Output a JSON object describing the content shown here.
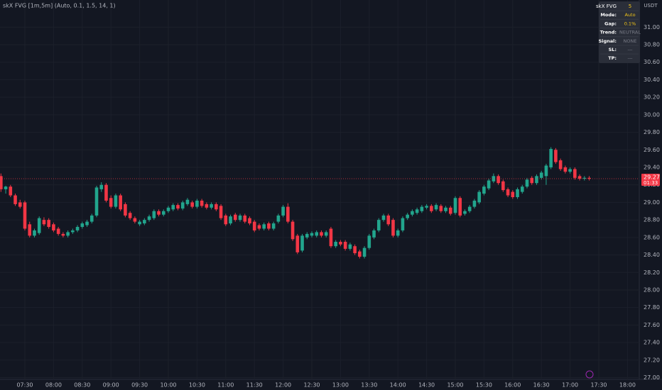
{
  "chart_data": {
    "type": "candlestick",
    "title": "skX FVG [1m,5m] (Auto, 0.1, 1.5, 14, 1)",
    "currency": "USDT",
    "up_color": "#22a58d",
    "down_color": "#f23645",
    "grid": true,
    "x": [
      "07:05",
      "07:10",
      "07:15",
      "07:20",
      "07:25",
      "07:30",
      "07:35",
      "07:40",
      "07:45",
      "07:50",
      "07:55",
      "08:00",
      "08:05",
      "08:10",
      "08:15",
      "08:20",
      "08:25",
      "08:30",
      "08:35",
      "08:40",
      "08:45",
      "08:50",
      "08:55",
      "09:00",
      "09:05",
      "09:10",
      "09:15",
      "09:20",
      "09:25",
      "09:30",
      "09:35",
      "09:40",
      "09:45",
      "09:50",
      "09:55",
      "10:00",
      "10:05",
      "10:10",
      "10:15",
      "10:20",
      "10:25",
      "10:30",
      "10:35",
      "10:40",
      "10:45",
      "10:50",
      "10:55",
      "11:00",
      "11:05",
      "11:10",
      "11:15",
      "11:20",
      "11:25",
      "11:30",
      "11:35",
      "11:40",
      "11:45",
      "11:50",
      "11:55",
      "12:00",
      "12:05",
      "12:10",
      "12:15",
      "12:20",
      "12:25",
      "12:30",
      "12:35",
      "12:40",
      "12:45",
      "12:50",
      "12:55",
      "13:00",
      "13:05",
      "13:10",
      "13:15",
      "13:20",
      "13:25",
      "13:30",
      "13:35",
      "13:40",
      "13:45",
      "13:50",
      "13:55",
      "14:00",
      "14:05",
      "14:10",
      "14:15",
      "14:20",
      "14:25",
      "14:30",
      "14:35",
      "14:40",
      "14:45",
      "14:50",
      "14:55",
      "15:00",
      "15:05",
      "15:10",
      "15:15",
      "15:20",
      "15:25",
      "15:30",
      "15:35",
      "15:40",
      "15:45",
      "15:50",
      "15:55",
      "16:00",
      "16:05",
      "16:10",
      "16:15",
      "16:20",
      "16:25",
      "16:30",
      "16:35",
      "16:40",
      "16:45",
      "16:50",
      "16:55",
      "17:00",
      "17:05",
      "17:10",
      "17:15",
      "17:20"
    ],
    "ohlc": [
      [
        29.3,
        29.33,
        29.12,
        29.15
      ],
      [
        29.15,
        29.19,
        29.1,
        29.18
      ],
      [
        29.18,
        29.2,
        29.06,
        29.08
      ],
      [
        29.08,
        29.1,
        28.96,
        28.98
      ],
      [
        29.0,
        29.03,
        28.93,
        28.95
      ],
      [
        29.0,
        29.02,
        28.68,
        28.7
      ],
      [
        28.75,
        28.78,
        28.6,
        28.62
      ],
      [
        28.62,
        28.7,
        28.6,
        28.68
      ],
      [
        28.65,
        28.84,
        28.63,
        28.82
      ],
      [
        28.8,
        28.83,
        28.73,
        28.75
      ],
      [
        28.8,
        28.82,
        28.7,
        28.72
      ],
      [
        28.75,
        28.77,
        28.66,
        28.68
      ],
      [
        28.7,
        28.72,
        28.62,
        28.64
      ],
      [
        28.64,
        28.66,
        28.6,
        28.62
      ],
      [
        28.62,
        28.68,
        28.6,
        28.66
      ],
      [
        28.66,
        28.7,
        28.64,
        28.68
      ],
      [
        28.68,
        28.74,
        28.66,
        28.72
      ],
      [
        28.72,
        28.78,
        28.7,
        28.76
      ],
      [
        28.74,
        28.8,
        28.72,
        28.78
      ],
      [
        28.78,
        28.87,
        28.76,
        28.85
      ],
      [
        28.85,
        29.19,
        28.83,
        29.17
      ],
      [
        29.15,
        29.23,
        29.12,
        29.2
      ],
      [
        29.2,
        29.22,
        29.0,
        29.02
      ],
      [
        29.05,
        29.08,
        28.93,
        28.95
      ],
      [
        28.95,
        29.1,
        28.93,
        29.08
      ],
      [
        29.08,
        29.1,
        28.9,
        28.92
      ],
      [
        28.98,
        29.0,
        28.83,
        28.85
      ],
      [
        28.88,
        28.9,
        28.8,
        28.82
      ],
      [
        28.82,
        28.84,
        28.76,
        28.78
      ],
      [
        28.75,
        28.8,
        28.73,
        28.78
      ],
      [
        28.76,
        28.82,
        28.74,
        28.8
      ],
      [
        28.8,
        28.86,
        28.78,
        28.84
      ],
      [
        28.82,
        28.92,
        28.8,
        28.9
      ],
      [
        28.9,
        28.92,
        28.84,
        28.86
      ],
      [
        28.86,
        28.92,
        28.84,
        28.9
      ],
      [
        28.9,
        28.96,
        28.88,
        28.94
      ],
      [
        28.92,
        28.99,
        28.9,
        28.97
      ],
      [
        28.97,
        28.99,
        28.91,
        28.93
      ],
      [
        28.93,
        29.02,
        28.91,
        29.0
      ],
      [
        28.98,
        29.05,
        28.96,
        29.03
      ],
      [
        29.0,
        29.02,
        28.93,
        28.95
      ],
      [
        28.95,
        29.04,
        28.93,
        29.02
      ],
      [
        29.02,
        29.04,
        28.94,
        28.96
      ],
      [
        28.98,
        29.0,
        28.92,
        28.94
      ],
      [
        28.94,
        29.0,
        28.92,
        28.98
      ],
      [
        28.98,
        29.0,
        28.9,
        28.92
      ],
      [
        28.96,
        28.98,
        28.8,
        28.82
      ],
      [
        28.85,
        28.87,
        28.73,
        28.75
      ],
      [
        28.76,
        28.86,
        28.74,
        28.84
      ],
      [
        28.86,
        28.88,
        28.78,
        28.8
      ],
      [
        28.8,
        28.87,
        28.78,
        28.85
      ],
      [
        28.85,
        28.87,
        28.76,
        28.78
      ],
      [
        28.82,
        28.84,
        28.74,
        28.76
      ],
      [
        28.78,
        28.8,
        28.66,
        28.68
      ],
      [
        28.74,
        28.76,
        28.68,
        28.7
      ],
      [
        28.7,
        28.77,
        28.68,
        28.75
      ],
      [
        28.76,
        28.78,
        28.68,
        28.7
      ],
      [
        28.7,
        28.78,
        28.68,
        28.76
      ],
      [
        28.78,
        28.87,
        28.76,
        28.85
      ],
      [
        28.85,
        28.97,
        28.83,
        28.95
      ],
      [
        28.95,
        28.99,
        28.76,
        28.78
      ],
      [
        28.78,
        28.8,
        28.56,
        28.58
      ],
      [
        28.62,
        28.64,
        28.41,
        28.43
      ],
      [
        28.45,
        28.64,
        28.43,
        28.62
      ],
      [
        28.6,
        28.66,
        28.58,
        28.64
      ],
      [
        28.62,
        28.67,
        28.6,
        28.65
      ],
      [
        28.62,
        28.68,
        28.6,
        28.66
      ],
      [
        28.66,
        28.68,
        28.6,
        28.62
      ],
      [
        28.62,
        28.68,
        28.6,
        28.66
      ],
      [
        28.7,
        28.72,
        28.48,
        28.5
      ],
      [
        28.5,
        28.57,
        28.48,
        28.55
      ],
      [
        28.55,
        28.57,
        28.5,
        28.52
      ],
      [
        28.55,
        28.57,
        28.45,
        28.47
      ],
      [
        28.47,
        28.54,
        28.45,
        28.52
      ],
      [
        28.5,
        28.52,
        28.4,
        28.42
      ],
      [
        28.44,
        28.46,
        28.36,
        28.38
      ],
      [
        28.38,
        28.5,
        28.36,
        28.48
      ],
      [
        28.48,
        28.64,
        28.46,
        28.62
      ],
      [
        28.6,
        28.7,
        28.58,
        28.68
      ],
      [
        28.68,
        28.82,
        28.66,
        28.8
      ],
      [
        28.8,
        28.87,
        28.78,
        28.85
      ],
      [
        28.85,
        28.87,
        28.73,
        28.75
      ],
      [
        28.8,
        28.82,
        28.6,
        28.62
      ],
      [
        28.62,
        28.7,
        28.6,
        28.68
      ],
      [
        28.68,
        28.84,
        28.66,
        28.82
      ],
      [
        28.82,
        28.88,
        28.8,
        28.86
      ],
      [
        28.86,
        28.92,
        28.84,
        28.9
      ],
      [
        28.88,
        28.94,
        28.86,
        28.92
      ],
      [
        28.9,
        28.97,
        28.88,
        28.95
      ],
      [
        28.94,
        28.98,
        28.92,
        28.96
      ],
      [
        28.96,
        28.98,
        28.88,
        28.9
      ],
      [
        28.92,
        28.99,
        28.9,
        28.97
      ],
      [
        28.96,
        28.98,
        28.88,
        28.9
      ],
      [
        28.9,
        28.96,
        28.88,
        28.94
      ],
      [
        28.94,
        28.96,
        28.85,
        28.87
      ],
      [
        28.88,
        29.07,
        28.86,
        29.05
      ],
      [
        29.05,
        29.07,
        28.83,
        28.85
      ],
      [
        28.87,
        28.92,
        28.85,
        28.9
      ],
      [
        28.9,
        28.97,
        28.88,
        28.95
      ],
      [
        28.95,
        29.04,
        28.93,
        29.02
      ],
      [
        29.0,
        29.14,
        28.98,
        29.12
      ],
      [
        29.1,
        29.2,
        29.08,
        29.18
      ],
      [
        29.16,
        29.27,
        29.14,
        29.25
      ],
      [
        29.24,
        29.33,
        29.22,
        29.3
      ],
      [
        29.3,
        29.32,
        29.2,
        29.22
      ],
      [
        29.24,
        29.26,
        29.12,
        29.14
      ],
      [
        29.15,
        29.17,
        29.06,
        29.08
      ],
      [
        29.12,
        29.14,
        29.04,
        29.06
      ],
      [
        29.06,
        29.17,
        29.04,
        29.15
      ],
      [
        29.12,
        29.2,
        29.1,
        29.18
      ],
      [
        29.18,
        29.28,
        29.16,
        29.26
      ],
      [
        29.28,
        29.3,
        29.2,
        29.22
      ],
      [
        29.22,
        29.32,
        29.2,
        29.3
      ],
      [
        29.28,
        29.36,
        29.26,
        29.34
      ],
      [
        29.3,
        29.44,
        29.2,
        29.42
      ],
      [
        29.4,
        29.63,
        29.38,
        29.61
      ],
      [
        29.6,
        29.62,
        29.44,
        29.46
      ],
      [
        29.48,
        29.5,
        29.36,
        29.38
      ],
      [
        29.4,
        29.42,
        29.33,
        29.35
      ],
      [
        29.35,
        29.4,
        29.33,
        29.38
      ],
      [
        29.38,
        29.4,
        29.26,
        29.28
      ],
      [
        29.3,
        29.32,
        29.25,
        29.27
      ],
      [
        29.27,
        29.3,
        29.25,
        29.28
      ],
      [
        29.28,
        29.3,
        29.25,
        29.27
      ]
    ],
    "xticks": [
      "07:30",
      "08:00",
      "08:30",
      "09:00",
      "09:30",
      "10:00",
      "10:30",
      "11:00",
      "11:30",
      "12:00",
      "12:30",
      "13:00",
      "13:30",
      "14:00",
      "14:30",
      "15:00",
      "15:30",
      "16:00",
      "16:30",
      "17:00",
      "17:30",
      "18:00"
    ],
    "ylim": [
      26.98,
      31.31
    ],
    "yticks": [
      {
        "value": 27.0,
        "label": "27.00"
      },
      {
        "value": 27.2,
        "label": "27.20"
      },
      {
        "value": 27.4,
        "label": "27.40"
      },
      {
        "value": 27.6,
        "label": "27.60"
      },
      {
        "value": 27.8,
        "label": "27.80"
      },
      {
        "value": 28.0,
        "label": "28.00"
      },
      {
        "value": 28.2,
        "label": "28.20"
      },
      {
        "value": 28.4,
        "label": "28.40"
      },
      {
        "value": 28.6,
        "label": "28.60"
      },
      {
        "value": 28.8,
        "label": "28.80"
      },
      {
        "value": 29.0,
        "label": "29.00"
      },
      {
        "value": 29.2,
        "label": "29.20"
      },
      {
        "value": 29.4,
        "label": "29.40"
      },
      {
        "value": 29.6,
        "label": "29.60"
      },
      {
        "value": 29.8,
        "label": "29.80"
      },
      {
        "value": 30.0,
        "label": "30.00"
      },
      {
        "value": 30.2,
        "label": "30.20"
      },
      {
        "value": 30.4,
        "label": "30.40"
      },
      {
        "value": 30.6,
        "label": "30.60"
      },
      {
        "value": 30.8,
        "label": "30.80"
      },
      {
        "value": 31.0,
        "label": "31.00"
      }
    ],
    "last_price": {
      "value": 29.27,
      "label": "29.27",
      "countdown": "01:33"
    },
    "panel": {
      "title": "skX FVG",
      "timeframe": "5",
      "rows": [
        [
          "Mode:",
          "Auto"
        ],
        [
          "Gap:",
          "0.1%"
        ],
        [
          "Trend:",
          "NEUTRAL"
        ],
        [
          "Signal:",
          "NONE"
        ],
        [
          "SL:",
          "---"
        ],
        [
          "TP:",
          "---"
        ]
      ]
    }
  }
}
